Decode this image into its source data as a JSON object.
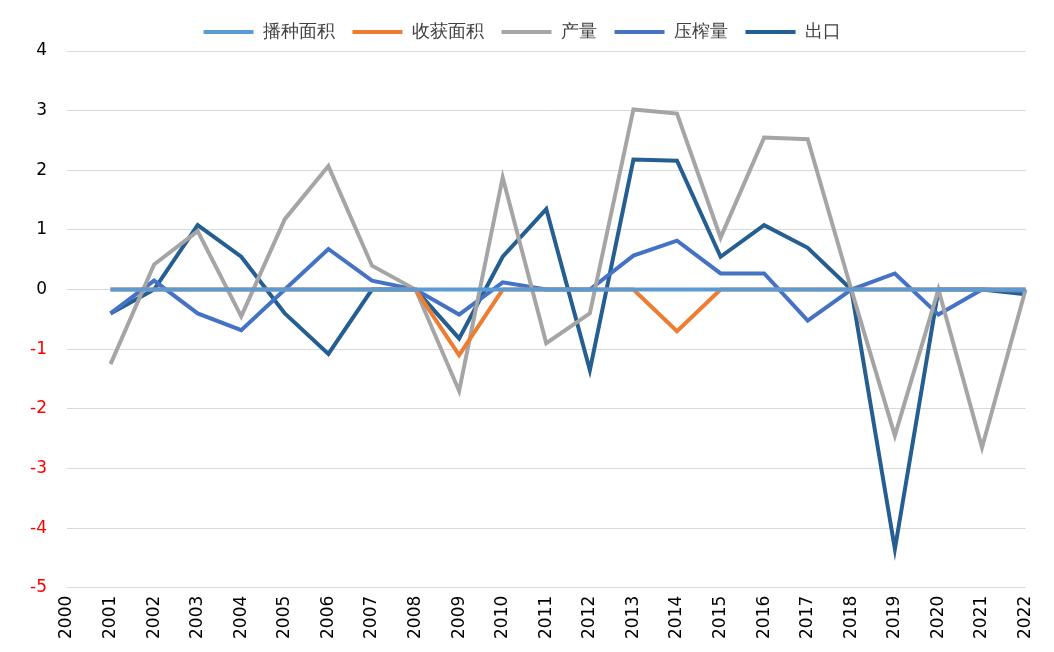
{
  "chart_data": {
    "type": "line",
    "categories": [
      "2000",
      "2001",
      "2002",
      "2003",
      "2004",
      "2005",
      "2006",
      "2007",
      "2008",
      "2009",
      "2010",
      "2011",
      "2012",
      "2013",
      "2014",
      "2015",
      "2016",
      "2017",
      "2018",
      "2019",
      "2020",
      "2021",
      "2022"
    ],
    "series": [
      {
        "name": "播种面积",
        "color": "#5B9BD5",
        "values": [
          null,
          0,
          0,
          0,
          0,
          0,
          0,
          0,
          0,
          0,
          0,
          0,
          0,
          0,
          0,
          0,
          0,
          0,
          0,
          0,
          0,
          0,
          0
        ]
      },
      {
        "name": "收获面积",
        "color": "#ED7D31",
        "values": [
          null,
          0,
          0,
          0,
          0,
          0,
          0,
          0,
          0,
          -1.1,
          0,
          0,
          0,
          0,
          -0.7,
          0,
          0,
          0,
          0,
          0,
          0,
          0,
          0
        ]
      },
      {
        "name": "产量",
        "color": "#A5A5A5",
        "values": [
          null,
          -1.25,
          0.42,
          0.98,
          -0.45,
          1.18,
          2.07,
          0.4,
          0,
          -1.7,
          1.88,
          -0.9,
          -0.4,
          3.02,
          2.95,
          0.87,
          2.55,
          2.52,
          0,
          -2.45,
          0,
          -2.65,
          0
        ]
      },
      {
        "name": "压榨量",
        "color": "#4472C4",
        "values": [
          null,
          -0.4,
          0.15,
          -0.4,
          -0.68,
          0,
          0.68,
          0.15,
          0,
          -0.42,
          0.12,
          0,
          0,
          0.57,
          0.82,
          0.27,
          0.27,
          -0.52,
          0,
          0.27,
          -0.42,
          0,
          -0.03
        ]
      },
      {
        "name": "出口",
        "color": "#255E91",
        "values": [
          null,
          -0.4,
          0,
          1.08,
          0.55,
          -0.4,
          -1.08,
          0,
          0,
          -0.82,
          0.55,
          1.35,
          -1.35,
          2.18,
          2.16,
          0.55,
          1.08,
          0.7,
          0,
          -4.35,
          0,
          0,
          -0.08
        ]
      }
    ],
    "ylim": [
      -5,
      4
    ],
    "yticks": [
      -5,
      -4,
      -3,
      -2,
      -1,
      0,
      1,
      2,
      3,
      4
    ],
    "grid": true,
    "legend": "top"
  }
}
